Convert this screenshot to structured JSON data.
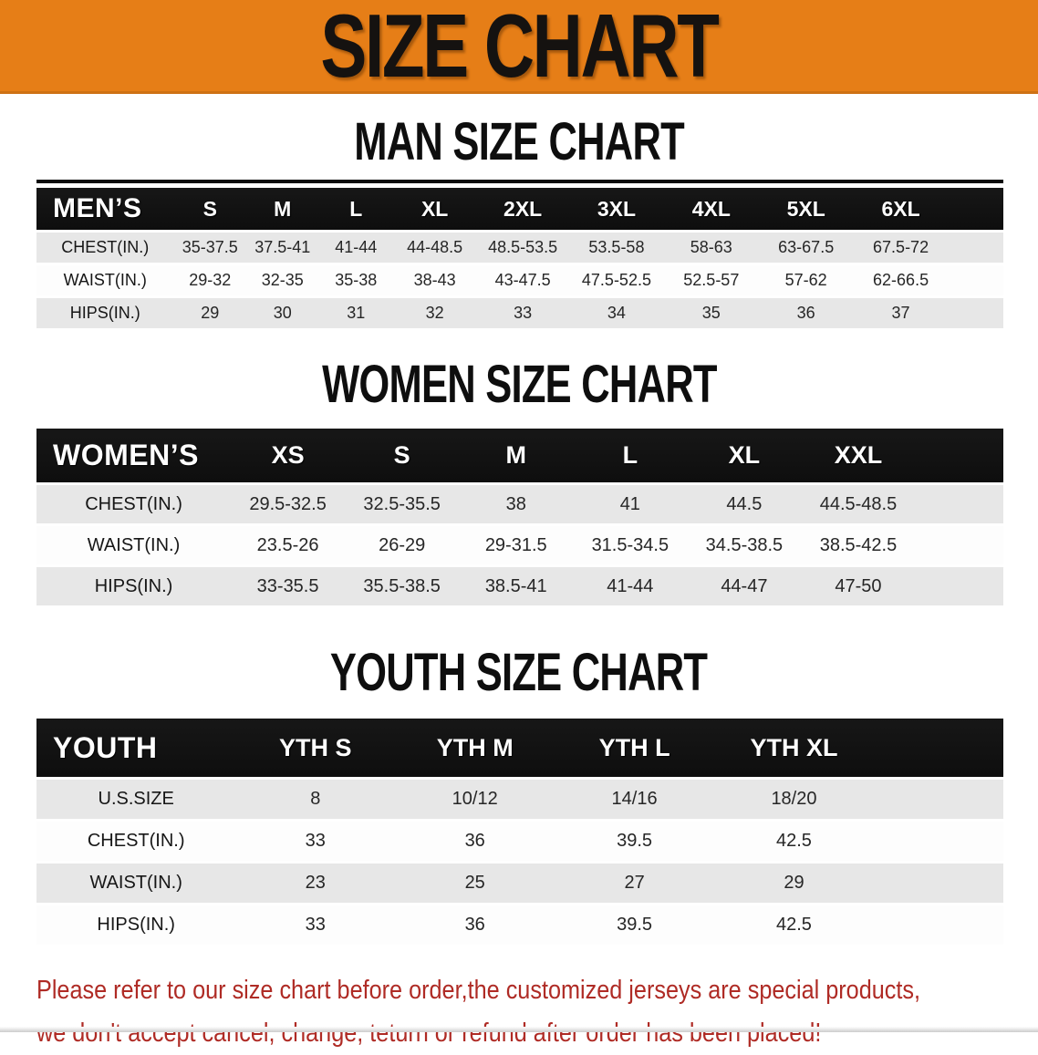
{
  "banner": {
    "title": "SIZE CHART"
  },
  "sections": [
    {
      "heading": "MAN SIZE CHART",
      "header_label": "MEN’S",
      "columns": [
        "S",
        "M",
        "L",
        "XL",
        "2XL",
        "3XL",
        "4XL",
        "5XL",
        "6XL"
      ],
      "rows": [
        {
          "label": "CHEST(IN.)",
          "values": [
            "35-37.5",
            "37.5-41",
            "41-44",
            "44-48.5",
            "48.5-53.5",
            "53.5-58",
            "58-63",
            "63-67.5",
            "67.5-72"
          ]
        },
        {
          "label": "WAIST(IN.)",
          "values": [
            "29-32",
            "32-35",
            "35-38",
            "38-43",
            "43-47.5",
            "47.5-52.5",
            "52.5-57",
            "57-62",
            "62-66.5"
          ]
        },
        {
          "label": "HIPS(IN.)",
          "values": [
            "29",
            "30",
            "31",
            "32",
            "33",
            "34",
            "35",
            "36",
            "37"
          ]
        }
      ]
    },
    {
      "heading": "WOMEN SIZE CHART",
      "header_label": "WOMEN’S",
      "columns": [
        "XS",
        "S",
        "M",
        "L",
        "XL",
        "XXL"
      ],
      "rows": [
        {
          "label": "CHEST(IN.)",
          "values": [
            "29.5-32.5",
            "32.5-35.5",
            "38",
            "41",
            "44.5",
            "44.5-48.5"
          ]
        },
        {
          "label": "WAIST(IN.)",
          "values": [
            "23.5-26",
            "26-29",
            "29-31.5",
            "31.5-34.5",
            "34.5-38.5",
            "38.5-42.5"
          ]
        },
        {
          "label": "HIPS(IN.)",
          "values": [
            "33-35.5",
            "35.5-38.5",
            "38.5-41",
            "41-44",
            "44-47",
            "47-50"
          ]
        }
      ]
    },
    {
      "heading": "YOUTH SIZE CHART",
      "header_label": "YOUTH",
      "columns": [
        "YTH S",
        "YTH M",
        "YTH L",
        "YTH XL"
      ],
      "rows": [
        {
          "label": "U.S.SIZE",
          "values": [
            "8",
            "10/12",
            "14/16",
            "18/20"
          ]
        },
        {
          "label": "CHEST(IN.)",
          "values": [
            "33",
            "36",
            "39.5",
            "42.5"
          ]
        },
        {
          "label": "WAIST(IN.)",
          "values": [
            "23",
            "25",
            "27",
            "29"
          ]
        },
        {
          "label": "HIPS(IN.)",
          "values": [
            "33",
            "36",
            "39.5",
            "42.5"
          ]
        }
      ]
    }
  ],
  "footer": {
    "lines": [
      "Please refer to our size chart before order,the customized jerseys are special products,",
      "we don't accept cancel, change, teturn or refund after order has been placed!"
    ]
  },
  "colors": {
    "banner_bg": "#E67E17",
    "header_bar": "#171717",
    "row_stripe": "#E7E7E7",
    "footer_text": "#AF2B25"
  }
}
